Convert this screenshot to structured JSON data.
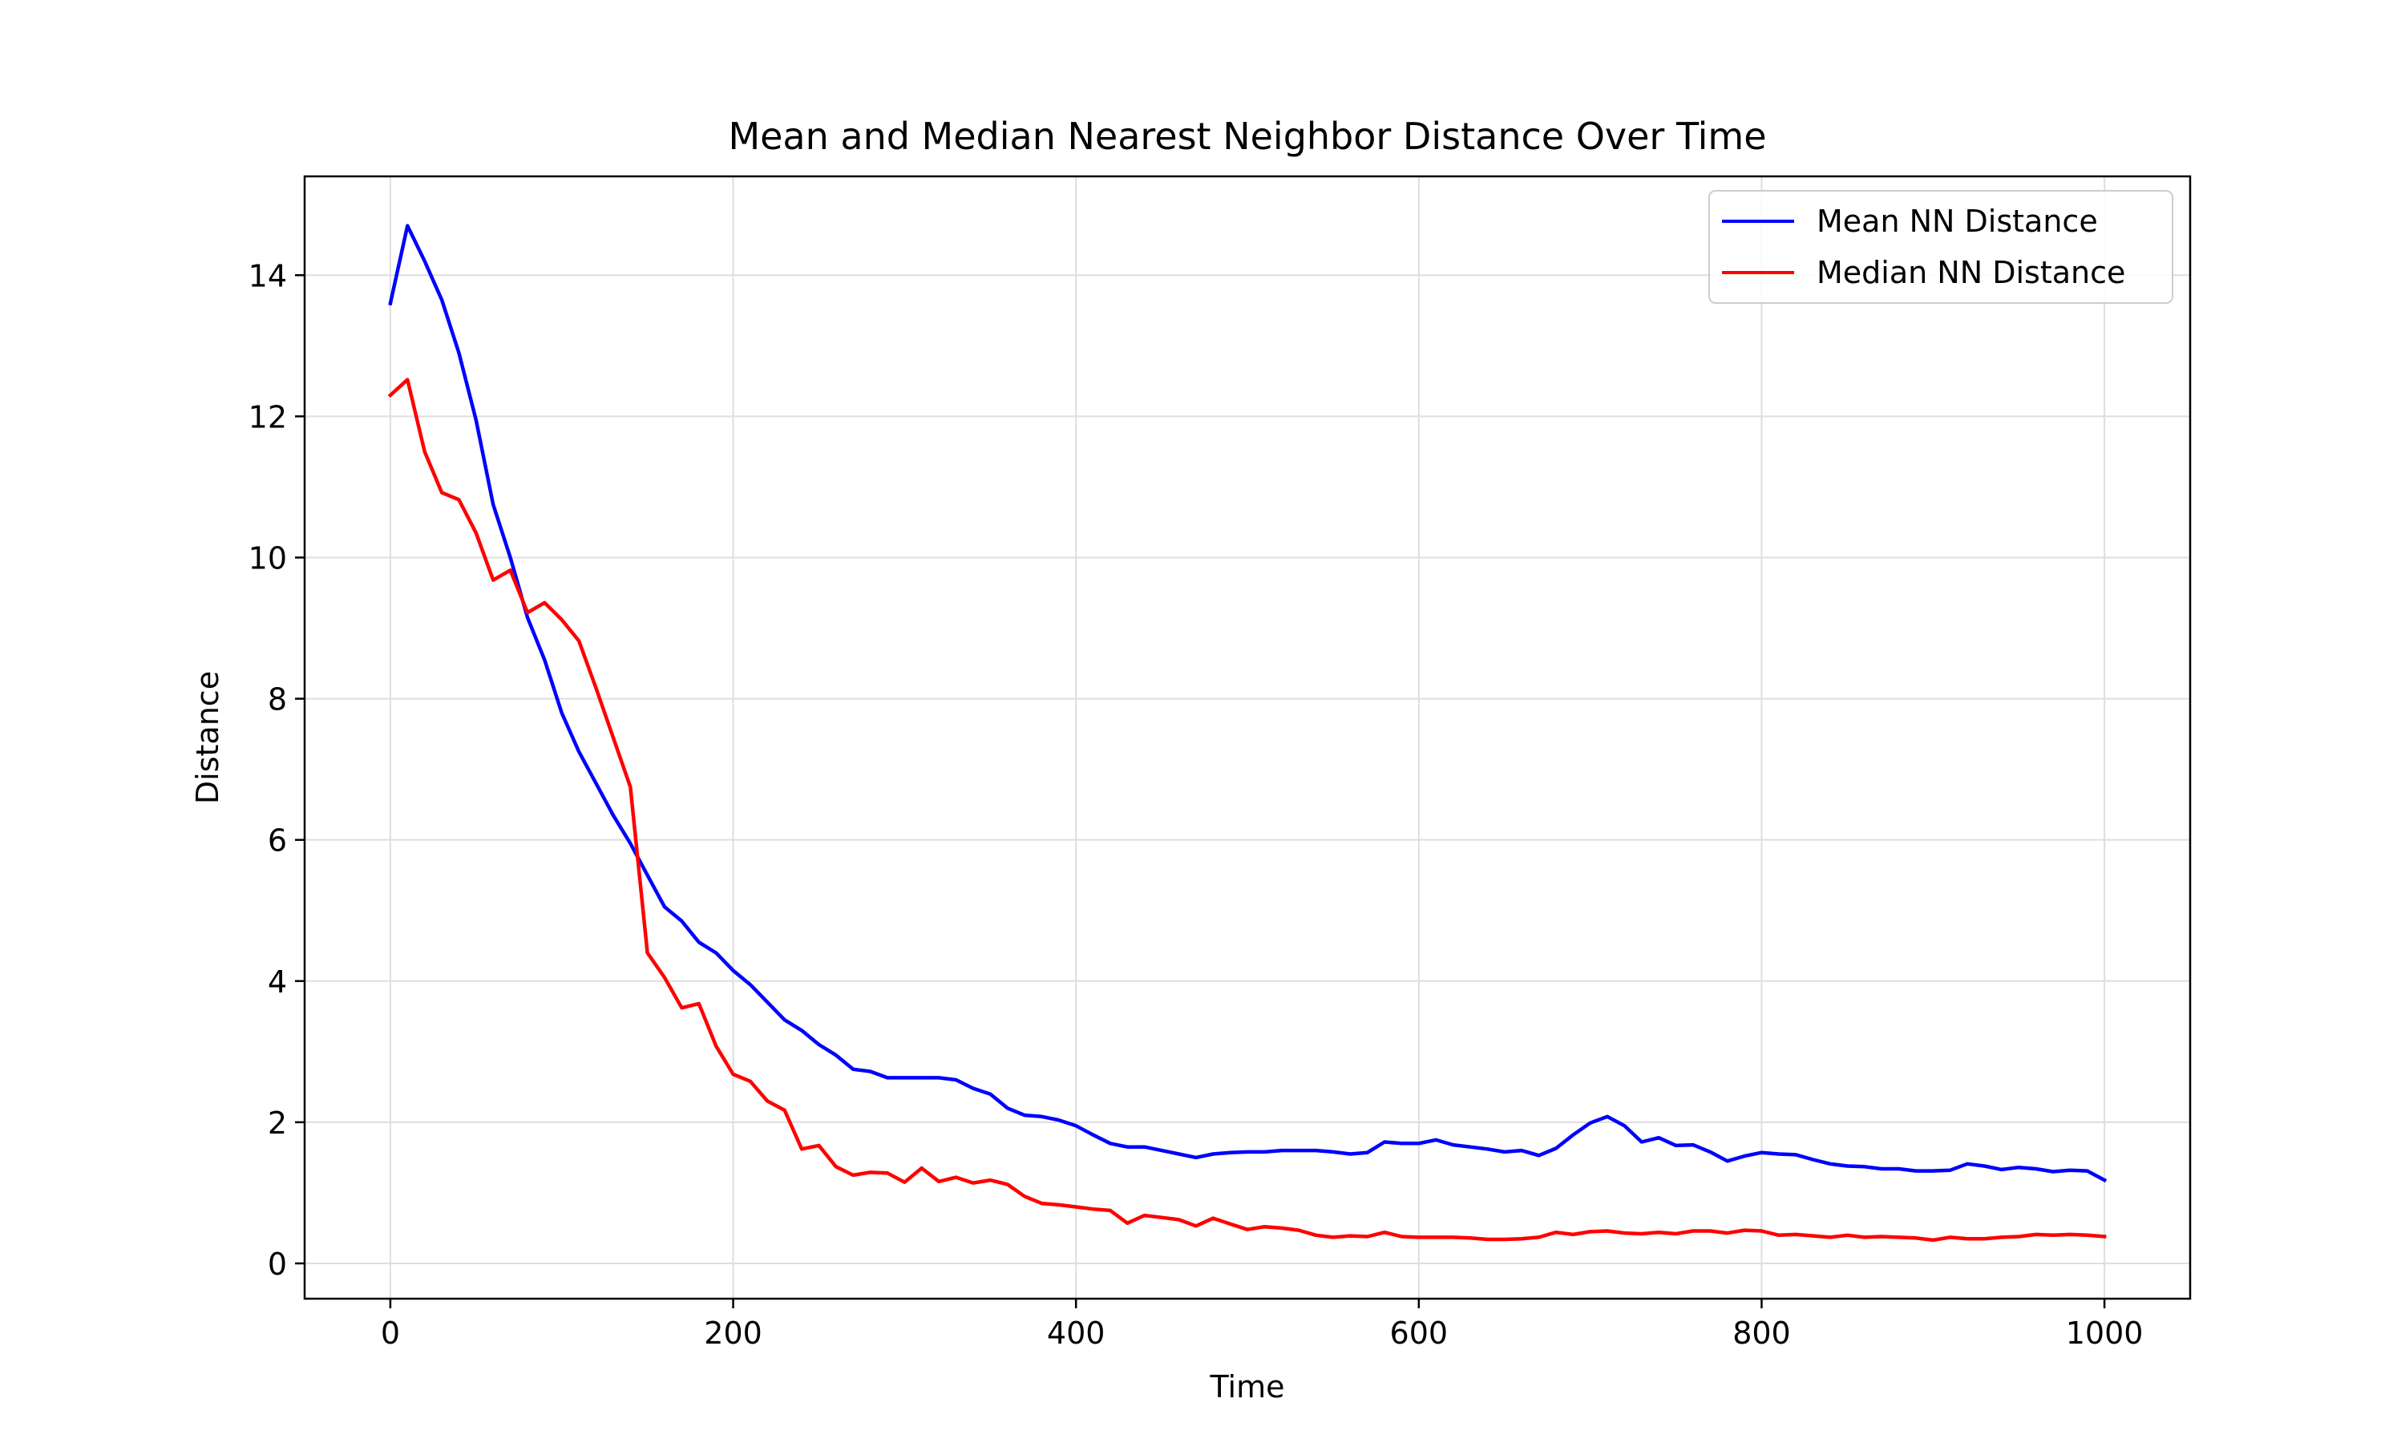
{
  "chart_data": {
    "type": "line",
    "title": "Mean and Median Nearest Neighbor Distance Over Time",
    "xlabel": "Time",
    "ylabel": "Distance",
    "xlim": [
      -50,
      1050
    ],
    "ylim": [
      -0.5,
      15.4
    ],
    "xticks": [
      0,
      200,
      400,
      600,
      800,
      1000
    ],
    "yticks": [
      0,
      2,
      4,
      6,
      8,
      10,
      12,
      14
    ],
    "grid": true,
    "legend_position": "top-right",
    "x": [
      0,
      10,
      20,
      30,
      40,
      50,
      60,
      70,
      80,
      90,
      100,
      110,
      120,
      130,
      140,
      150,
      160,
      170,
      180,
      190,
      200,
      210,
      220,
      230,
      240,
      250,
      260,
      270,
      280,
      290,
      300,
      310,
      320,
      330,
      340,
      350,
      360,
      370,
      380,
      390,
      400,
      410,
      420,
      430,
      440,
      450,
      460,
      470,
      480,
      490,
      500,
      510,
      520,
      530,
      540,
      550,
      560,
      570,
      580,
      590,
      600,
      610,
      620,
      630,
      640,
      650,
      660,
      670,
      680,
      690,
      700,
      710,
      720,
      730,
      740,
      750,
      760,
      770,
      780,
      790,
      800,
      810,
      820,
      830,
      840,
      850,
      860,
      870,
      880,
      890,
      900,
      910,
      920,
      930,
      940,
      950,
      960,
      970,
      980,
      990,
      1000
    ],
    "series": [
      {
        "name": "Mean NN Distance",
        "color": "#0000ff",
        "values": [
          13.6,
          14.7,
          14.2,
          13.65,
          12.9,
          11.95,
          10.75,
          10.0,
          9.15,
          8.55,
          7.8,
          7.25,
          6.8,
          6.35,
          5.95,
          5.5,
          5.05,
          4.85,
          4.55,
          4.4,
          4.15,
          3.95,
          3.7,
          3.45,
          3.3,
          3.1,
          2.95,
          2.75,
          2.72,
          2.63,
          2.63,
          2.63,
          2.63,
          2.6,
          2.48,
          2.4,
          2.2,
          2.1,
          2.08,
          2.03,
          1.95,
          1.82,
          1.7,
          1.65,
          1.65,
          1.6,
          1.55,
          1.5,
          1.55,
          1.57,
          1.58,
          1.58,
          1.6,
          1.6,
          1.6,
          1.58,
          1.55,
          1.57,
          1.72,
          1.7,
          1.7,
          1.75,
          1.68,
          1.65,
          1.62,
          1.58,
          1.6,
          1.53,
          1.63,
          1.82,
          1.99,
          2.08,
          1.95,
          1.72,
          1.78,
          1.67,
          1.68,
          1.58,
          1.45,
          1.52,
          1.57,
          1.55,
          1.54,
          1.47,
          1.41,
          1.38,
          1.37,
          1.34,
          1.34,
          1.31,
          1.31,
          1.32,
          1.41,
          1.38,
          1.33,
          1.36,
          1.34,
          1.3,
          1.32,
          1.31,
          1.18
        ]
      },
      {
        "name": "Median NN Distance",
        "color": "#ff0000",
        "values": [
          12.3,
          12.52,
          11.5,
          10.92,
          10.82,
          10.35,
          9.68,
          9.82,
          9.22,
          9.36,
          9.12,
          8.82,
          8.15,
          7.45,
          6.75,
          4.4,
          4.05,
          3.62,
          3.68,
          3.08,
          2.68,
          2.58,
          2.3,
          2.17,
          1.62,
          1.67,
          1.37,
          1.25,
          1.29,
          1.28,
          1.15,
          1.35,
          1.16,
          1.22,
          1.14,
          1.18,
          1.12,
          0.95,
          0.85,
          0.83,
          0.8,
          0.77,
          0.75,
          0.57,
          0.68,
          0.65,
          0.62,
          0.53,
          0.64,
          0.56,
          0.48,
          0.52,
          0.5,
          0.47,
          0.4,
          0.37,
          0.39,
          0.38,
          0.44,
          0.38,
          0.37,
          0.37,
          0.37,
          0.36,
          0.34,
          0.34,
          0.35,
          0.37,
          0.44,
          0.41,
          0.45,
          0.46,
          0.43,
          0.42,
          0.44,
          0.42,
          0.46,
          0.46,
          0.43,
          0.47,
          0.46,
          0.4,
          0.41,
          0.39,
          0.37,
          0.4,
          0.37,
          0.38,
          0.37,
          0.36,
          0.33,
          0.37,
          0.35,
          0.35,
          0.37,
          0.38,
          0.41,
          0.4,
          0.41,
          0.4,
          0.38
        ]
      }
    ]
  }
}
